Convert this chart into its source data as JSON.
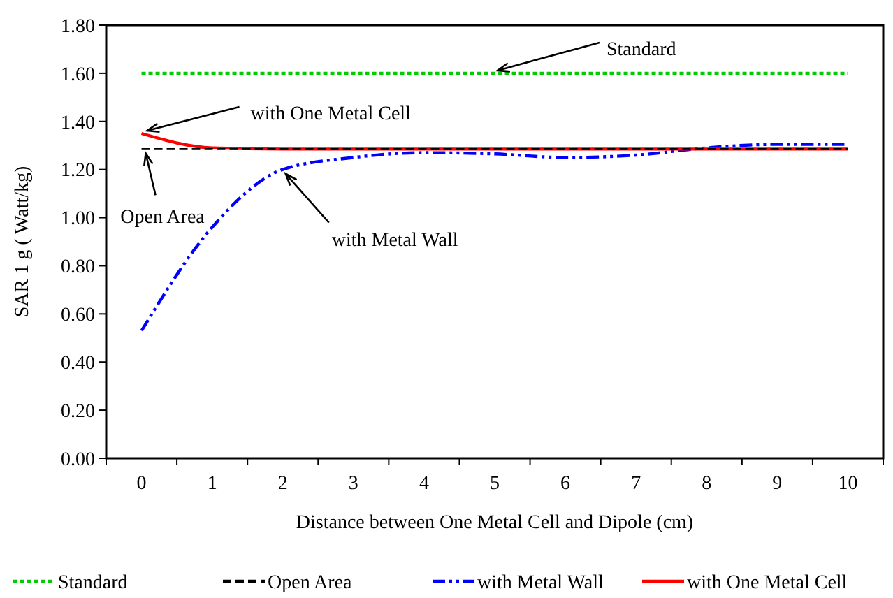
{
  "chart_data": {
    "type": "line",
    "xlabel": "Distance between One Metal Cell and Dipole (cm)",
    "ylabel": "SAR 1 g ( Watt/kg)",
    "categories": [
      "0",
      "1",
      "2",
      "3",
      "4",
      "5",
      "6",
      "7",
      "8",
      "9",
      "10"
    ],
    "ylim": [
      0,
      1.8
    ],
    "yticks": [
      {
        "value": 0,
        "label": "0.00"
      },
      {
        "value": 0.2,
        "label": "0.20"
      },
      {
        "value": 0.4,
        "label": "0.40"
      },
      {
        "value": 0.6,
        "label": "0.60"
      },
      {
        "value": 0.8,
        "label": "0.80"
      },
      {
        "value": 1,
        "label": "1.00"
      },
      {
        "value": 1.2,
        "label": "1.20"
      },
      {
        "value": 1.4,
        "label": "1.40"
      },
      {
        "value": 1.6,
        "label": "1.60"
      },
      {
        "value": 1.8,
        "label": "1.80"
      }
    ],
    "grid": false,
    "legend": "bottom",
    "marker": "none",
    "series": [
      {
        "name": "Standard",
        "color": "#00cc00",
        "line_style": "dotted",
        "values": [
          1.6,
          1.6,
          1.6,
          1.6,
          1.6,
          1.6,
          1.6,
          1.6,
          1.6,
          1.6,
          1.6
        ]
      },
      {
        "name": "Open Area",
        "color": "#000000",
        "line_style": "dashed",
        "values": [
          1.285,
          1.285,
          1.285,
          1.285,
          1.285,
          1.285,
          1.285,
          1.285,
          1.285,
          1.285,
          1.285
        ]
      },
      {
        "name": "with Metal Wall",
        "color": "#0000ff",
        "line_style": "dashdot",
        "values": [
          0.53,
          0.96,
          1.2,
          1.25,
          1.27,
          1.265,
          1.25,
          1.26,
          1.29,
          1.305,
          1.305
        ]
      },
      {
        "name": "with One Metal Cell",
        "color": "#ff0000",
        "line_style": "solid",
        "values": [
          1.35,
          1.29,
          1.285,
          1.285,
          1.285,
          1.285,
          1.285,
          1.285,
          1.285,
          1.285,
          1.285
        ]
      }
    ],
    "annotations": [
      {
        "text": "Standard",
        "x": "5",
        "y": 1.6
      },
      {
        "text": "with One Metal Cell",
        "x": "0",
        "y": 1.35
      },
      {
        "text": "Open Area",
        "x": "0",
        "y": 1.285
      },
      {
        "text": "with Metal Wall",
        "x": "2",
        "y": 1.2
      }
    ]
  }
}
